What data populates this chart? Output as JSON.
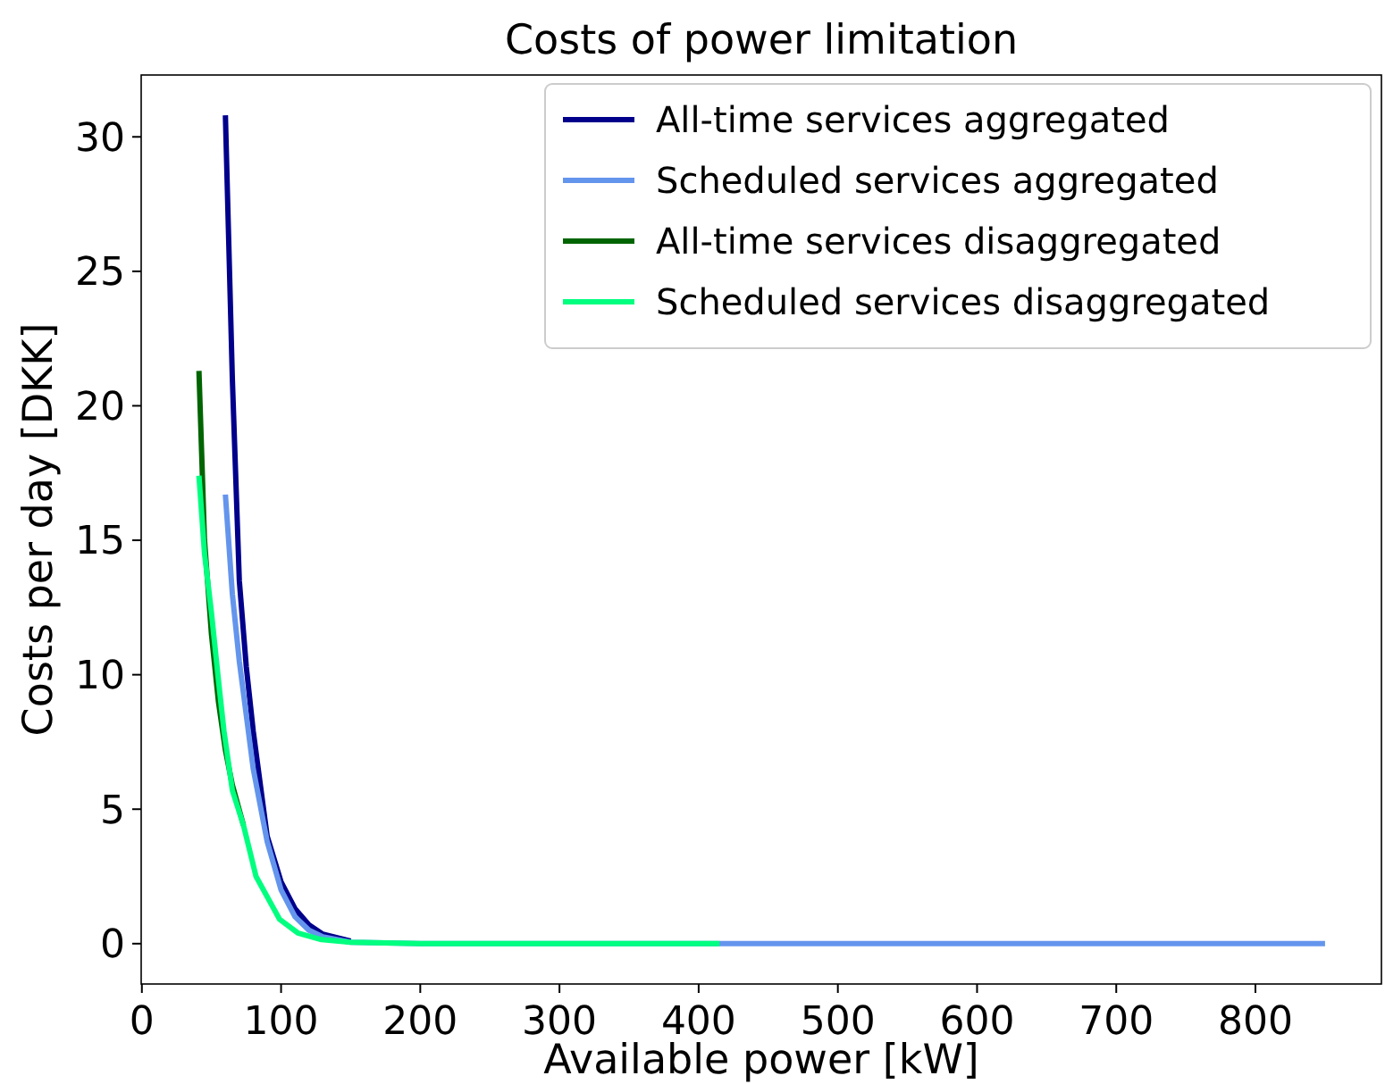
{
  "chart_data": {
    "type": "line",
    "title": "Costs of power limitation",
    "xlabel": "Available power [kW]",
    "ylabel": "Costs per day [DKK]",
    "xlim": [
      -0.5,
      890.5
    ],
    "ylim": [
      -1.5,
      32.3
    ],
    "xticks": [
      0,
      100,
      200,
      300,
      400,
      500,
      600,
      700,
      800
    ],
    "yticks": [
      0,
      5,
      10,
      15,
      20,
      25,
      30
    ],
    "legend": "top right",
    "grid": false,
    "series": [
      {
        "name": "All-time services aggregated",
        "color": "#00008b",
        "x": [
          60,
          65,
          70,
          75,
          80,
          90,
          100,
          110,
          120,
          130,
          150
        ],
        "values": [
          30.8,
          21,
          13.5,
          10.3,
          7.9,
          4.0,
          2.3,
          1.3,
          0.7,
          0.35,
          0.1
        ]
      },
      {
        "name": "Scheduled services aggregated",
        "color": "#6495ed",
        "x": [
          60,
          65,
          70,
          80,
          90,
          100,
          110,
          120,
          130,
          150,
          200,
          400,
          600,
          850
        ],
        "values": [
          16.7,
          13,
          10.5,
          6.5,
          3.8,
          2.0,
          1.0,
          0.5,
          0.25,
          0.05,
          0,
          0,
          0,
          0
        ]
      },
      {
        "name": "All-time services disaggregated",
        "color": "#006400",
        "x": [
          41,
          45,
          50,
          55,
          60,
          65,
          73
        ],
        "values": [
          21.3,
          15,
          11.5,
          9,
          7.2,
          5.9,
          4.4
        ]
      },
      {
        "name": "Scheduled services disaggregated",
        "color": "#00ff7f",
        "x": [
          41,
          45,
          50,
          55,
          59,
          65,
          73,
          82,
          99,
          112,
          129,
          150,
          200,
          300,
          415
        ],
        "values": [
          17.4,
          14.5,
          12.3,
          9.8,
          7.9,
          5.7,
          4.4,
          2.5,
          0.9,
          0.4,
          0.15,
          0.05,
          0,
          0,
          0
        ]
      }
    ]
  }
}
